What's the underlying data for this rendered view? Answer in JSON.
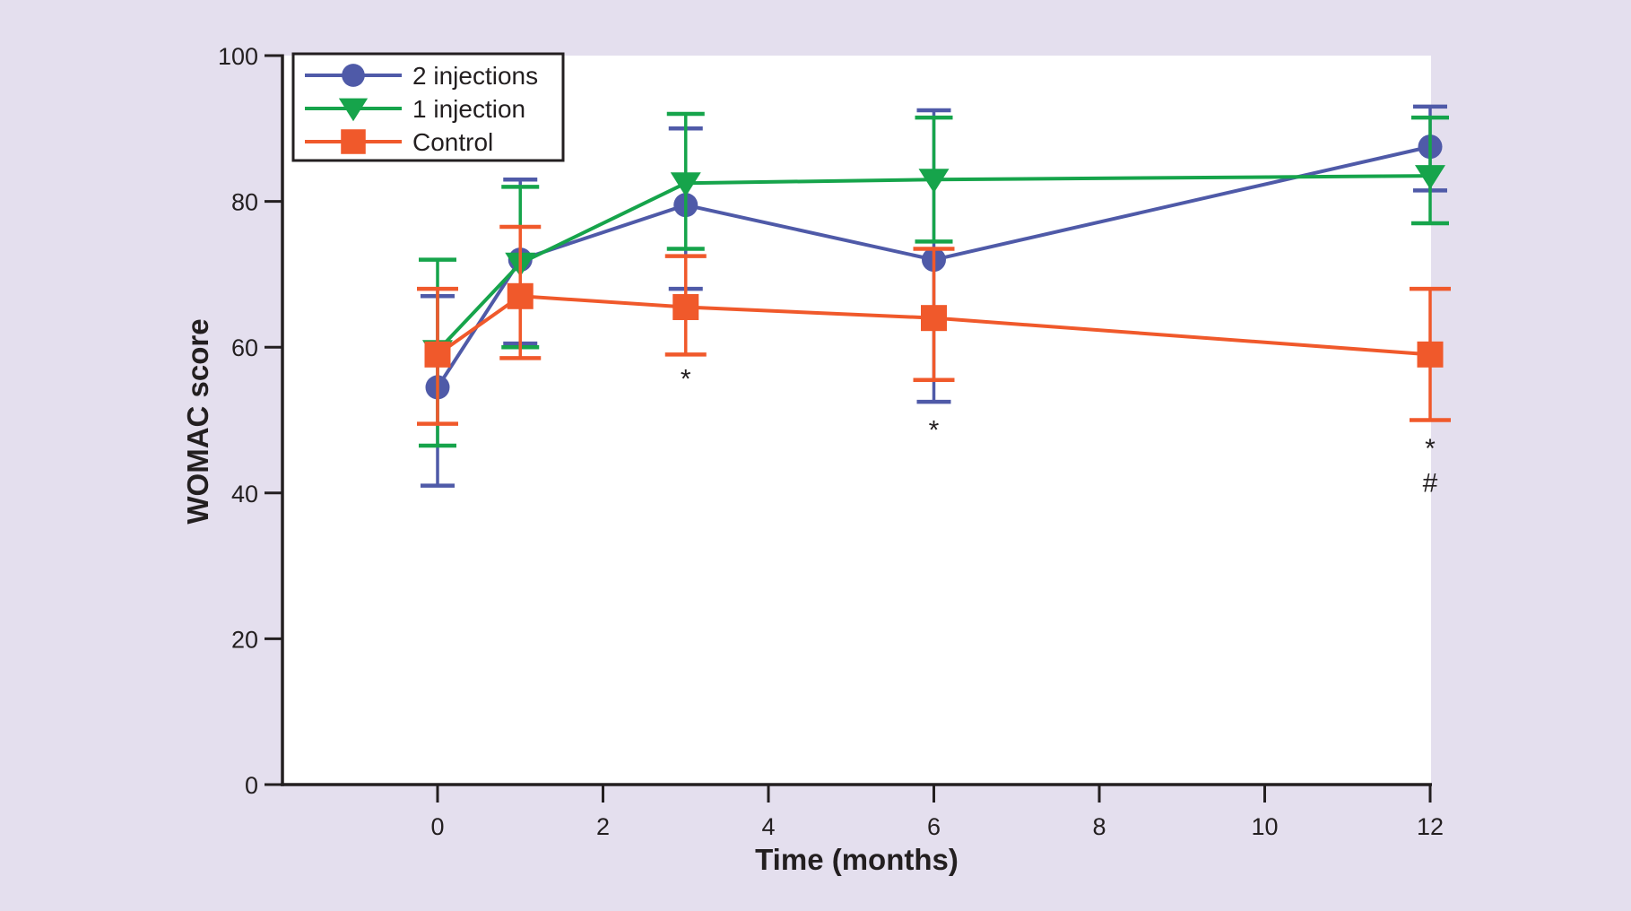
{
  "figure": {
    "background_color": "#e4dfee",
    "plot_background": "#ffffff",
    "axis_color": "#231f20"
  },
  "chart_data": {
    "type": "line",
    "title": "",
    "xlabel": "Time (months)",
    "ylabel": "WOMAC score",
    "x_tick_labels": [
      0,
      2,
      4,
      6,
      8,
      10,
      12
    ],
    "y_tick_labels": [
      0,
      20,
      40,
      60,
      80,
      100
    ],
    "xlim": [
      -1.88,
      12.02
    ],
    "ylim": [
      0,
      100
    ],
    "grid": false,
    "legend_position": "top-left",
    "error_bars": true,
    "x": [
      0,
      1,
      3,
      6,
      12
    ],
    "series": [
      {
        "name": "2 injections",
        "color": "#4f5aa8",
        "marker": "circle",
        "values": [
          54.5,
          72.0,
          79.5,
          72.0,
          87.5
        ],
        "err_low": [
          41.0,
          60.5,
          68.0,
          52.5,
          81.5
        ],
        "err_high": [
          67.0,
          83.0,
          90.0,
          92.5,
          93.0
        ]
      },
      {
        "name": "1 injection",
        "color": "#16a44b",
        "marker": "triangle-down",
        "values": [
          59.5,
          71.5,
          82.5,
          83.0,
          83.5
        ],
        "err_low": [
          46.5,
          60.0,
          73.5,
          74.5,
          77.0
        ],
        "err_high": [
          72.0,
          82.0,
          92.0,
          91.5,
          91.5
        ]
      },
      {
        "name": "Control",
        "color": "#f0592b",
        "marker": "square",
        "values": [
          59.0,
          67.0,
          65.5,
          64.0,
          59.0
        ],
        "err_low": [
          49.5,
          58.5,
          59.0,
          55.5,
          50.0
        ],
        "err_high": [
          68.0,
          76.5,
          72.5,
          73.5,
          68.0
        ]
      }
    ],
    "annotations": [
      {
        "x": 3,
        "y": 56.0,
        "text": "*"
      },
      {
        "x": 6,
        "y": 49.0,
        "text": "*"
      },
      {
        "x": 12,
        "y": 46.5,
        "text": "*"
      },
      {
        "x": 12,
        "y": 41.5,
        "text": "#"
      }
    ]
  }
}
